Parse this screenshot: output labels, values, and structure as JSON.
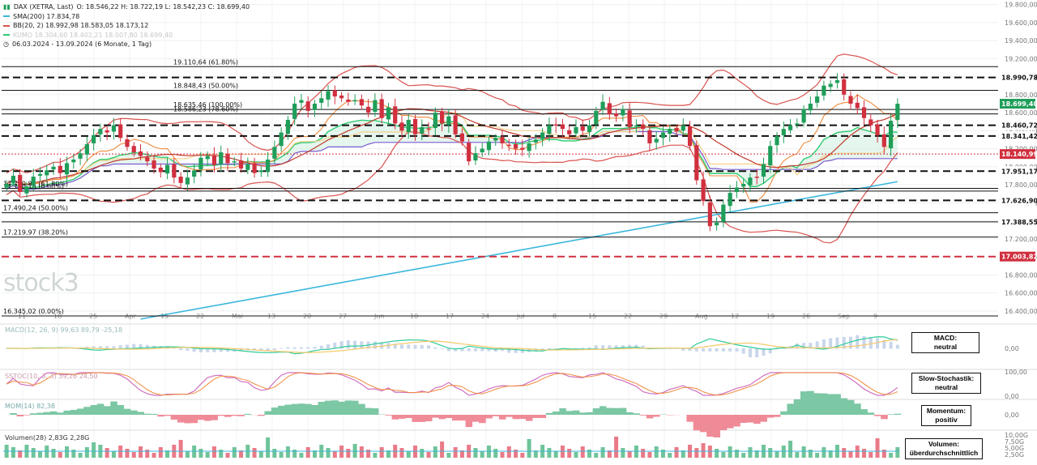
{
  "legend": {
    "instrument": "DAX (XETRA, Last)",
    "ohlc": "O: 18.546,22  H: 18.722,19  L: 18.542,23  C: 18.699,40",
    "sma": "SMA(200)  17.834,78",
    "bb": "BB(20, 2)  18.992,98  18.583,05  18.173,12",
    "ichimoku": "KUMO  18.304,60  18.402,21  18.007,80  18.699,40",
    "period": "06.03.2024 - 13.09.2024  (6 Monate, 1 Tag)",
    "watermark": "stock3"
  },
  "colors": {
    "up": "#1f9e5a",
    "down": "#d1303f",
    "sma": "#3bb7dd",
    "bb": "#d9534f",
    "bbmid": "#c0392b",
    "tenkan": "#f08a3c",
    "kijun": "#f5d08a",
    "spanA": "#2ecc71",
    "spanB": "#7b5bd1",
    "cloud": "#cfeee0"
  },
  "chart_data": {
    "type": "candlestick",
    "title": "DAX (XETRA, Last)",
    "ylim": [
      16300,
      19850
    ],
    "y_ticks": [
      "19.800,00",
      "19.600,00",
      "19.400,00",
      "19.200,00",
      "19.000,00",
      "18.800,00",
      "18.600,00",
      "18.400,00",
      "18.200,00",
      "18.000,00",
      "17.800,00",
      "17.600,00",
      "17.400,00",
      "17.200,00",
      "17.000,00",
      "16.800,00",
      "16.600,00",
      "16.400,00"
    ],
    "y_tick_values": [
      19800,
      19600,
      19400,
      19200,
      19000,
      18800,
      18600,
      18400,
      18200,
      18000,
      17800,
      17600,
      17400,
      17200,
      17000,
      16800,
      16600,
      16400
    ],
    "x_ticks": [
      "11",
      "18",
      "25",
      "Apr",
      "15",
      "22",
      "Mai",
      "13",
      "20",
      "27",
      "Jun",
      "10",
      "17",
      "24",
      "Jul",
      "8",
      "15",
      "22",
      "29",
      "Aug",
      "12",
      "19",
      "26",
      "Sep",
      "9"
    ],
    "fib_levels": [
      {
        "label": "19.110,64 (61.80%)",
        "value": 19110.64
      },
      {
        "label": "18.848,43 (50.00%)",
        "value": 18848.43
      },
      {
        "label": "18.635,46 (100.00%)",
        "value": 18635.46
      },
      {
        "label": "18.586,23 (78.60%)",
        "value": 18586.23
      },
      {
        "label": "17.760,81 (61.80%)",
        "value": 17760.81
      },
      {
        "label": "17.730,16 (0.00%)",
        "value": 17730.16
      },
      {
        "label": "17.490,24 (50.00%)",
        "value": 17490.24
      },
      {
        "label": "17.219,97 (38.20%)",
        "value": 17219.97
      },
      {
        "label": "16.345,02 (0.00%)",
        "value": 16345.02
      }
    ],
    "dashed_levels": [
      {
        "label": "18.990,78",
        "value": 18990.78,
        "color": "#111"
      },
      {
        "label": "18.460,72",
        "value": 18460.72,
        "color": "#111"
      },
      {
        "label": "18.341,42",
        "value": 18341.42,
        "color": "#111"
      },
      {
        "label": "17.951,17",
        "value": 17951.17,
        "color": "#111"
      },
      {
        "label": "17.626,90",
        "value": 17626.9,
        "color": "#111"
      },
      {
        "label": "17.003,82",
        "value": 17003.82,
        "color": "#d1303f"
      }
    ],
    "solid_levels": [
      {
        "label": "17.388,55",
        "value": 17388.55
      }
    ],
    "current_price": {
      "label": "18.699,40",
      "value": 18699.4
    },
    "dotted_level": {
      "label": "18.140,99",
      "value": 18140.99
    },
    "closes": [
      17810,
      17900,
      17720,
      17780,
      17890,
      17920,
      17960,
      18000,
      17930,
      18040,
      18080,
      18150,
      18250,
      18350,
      18420,
      18380,
      18460,
      18320,
      18220,
      18160,
      18120,
      18060,
      17980,
      17940,
      18020,
      17880,
      17820,
      17880,
      17960,
      18100,
      18120,
      18020,
      18160,
      18040,
      18060,
      17980,
      18030,
      17930,
      17960,
      18080,
      18220,
      18380,
      18520,
      18700,
      18740,
      18620,
      18700,
      18760,
      18840,
      18780,
      18760,
      18720,
      18740,
      18680,
      18600,
      18740,
      18540,
      18660,
      18480,
      18400,
      18520,
      18360,
      18440,
      18420,
      18600,
      18480,
      18560,
      18360,
      18280,
      18060,
      18150,
      18200,
      18280,
      18320,
      18260,
      18240,
      18200,
      18190,
      18260,
      18300,
      18380,
      18460,
      18460,
      18420,
      18360,
      18440,
      18400,
      18460,
      18620,
      18720,
      18580,
      18560,
      18640,
      18440,
      18460,
      18420,
      18260,
      18310,
      18380,
      18420,
      18390,
      18460,
      18230,
      17850,
      17620,
      17340,
      17380,
      17580,
      17710,
      17770,
      17810,
      17880,
      17880,
      18030,
      18230,
      18340,
      18420,
      18460,
      18480,
      18640,
      18700,
      18780,
      18900,
      18920,
      18960,
      18800,
      18700,
      18650,
      18540,
      18460,
      18350,
      18220,
      18510,
      18699
    ]
  },
  "indicators": {
    "macd": {
      "label": "MACD(12, 26, 9)  99,63  89,79  -25,18",
      "tick": "0,00",
      "box": [
        "MACD:",
        "neutral"
      ]
    },
    "stoch": {
      "label": "SSTOC(10, 3, 3)  39,26  24,50",
      "ticks": [
        "100,00",
        "0,00"
      ],
      "box": [
        "Slow-Stochastik:",
        "neutral"
      ]
    },
    "mom": {
      "label": "MOM(14)  82,38",
      "tick": "0,00",
      "box": [
        "Momentum:",
        "positiv"
      ]
    },
    "vol": {
      "label": "Volumen(28)  2,83G  2,28G",
      "ticks": [
        "10,00G",
        "7,50G",
        "5,00G",
        "2,50G"
      ],
      "box": [
        "Volumen:",
        "überdurchschnittlich"
      ]
    }
  }
}
